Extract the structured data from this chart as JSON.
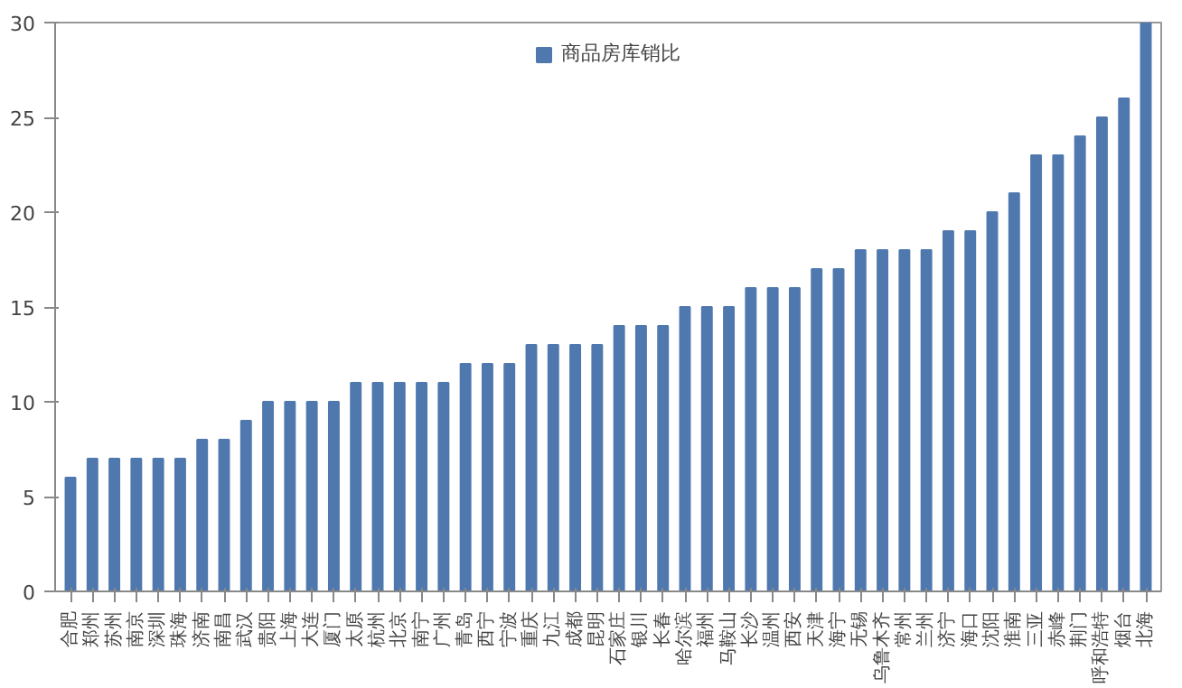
{
  "chart_data": {
    "type": "bar",
    "categories": [
      "合肥",
      "郑州",
      "苏州",
      "南京",
      "深圳",
      "珠海",
      "济南",
      "南昌",
      "武汉",
      "贵阳",
      "上海",
      "大连",
      "厦门",
      "太原",
      "杭州",
      "北京",
      "南宁",
      "广州",
      "青岛",
      "西宁",
      "宁波",
      "重庆",
      "九江",
      "成都",
      "昆明",
      "石家庄",
      "银川",
      "长春",
      "哈尔滨",
      "福州",
      "马鞍山",
      "长沙",
      "温州",
      "西安",
      "天津",
      "海宁",
      "无锡",
      "乌鲁木齐",
      "常州",
      "兰州",
      "济宁",
      "海口",
      "沈阳",
      "淮南",
      "三亚",
      "赤峰",
      "荆门",
      "呼和浩特",
      "烟台",
      "北海"
    ],
    "series": [
      {
        "name": "商品房库销比",
        "color": "#4f78ae",
        "values": [
          6,
          7,
          7,
          7,
          7,
          7,
          8,
          8,
          9,
          10,
          10,
          10,
          10,
          11,
          11,
          11,
          11,
          11,
          12,
          12,
          12,
          13,
          13,
          13,
          13,
          14,
          14,
          14,
          15,
          15,
          15,
          16,
          16,
          16,
          17,
          17,
          18,
          18,
          18,
          18,
          19,
          19,
          20,
          21,
          23,
          23,
          24,
          25,
          26,
          30
        ]
      }
    ],
    "ylim": [
      0,
      30
    ],
    "yticks": [
      0,
      5,
      10,
      15,
      20,
      25,
      30
    ],
    "grid": false,
    "legend": "top"
  }
}
